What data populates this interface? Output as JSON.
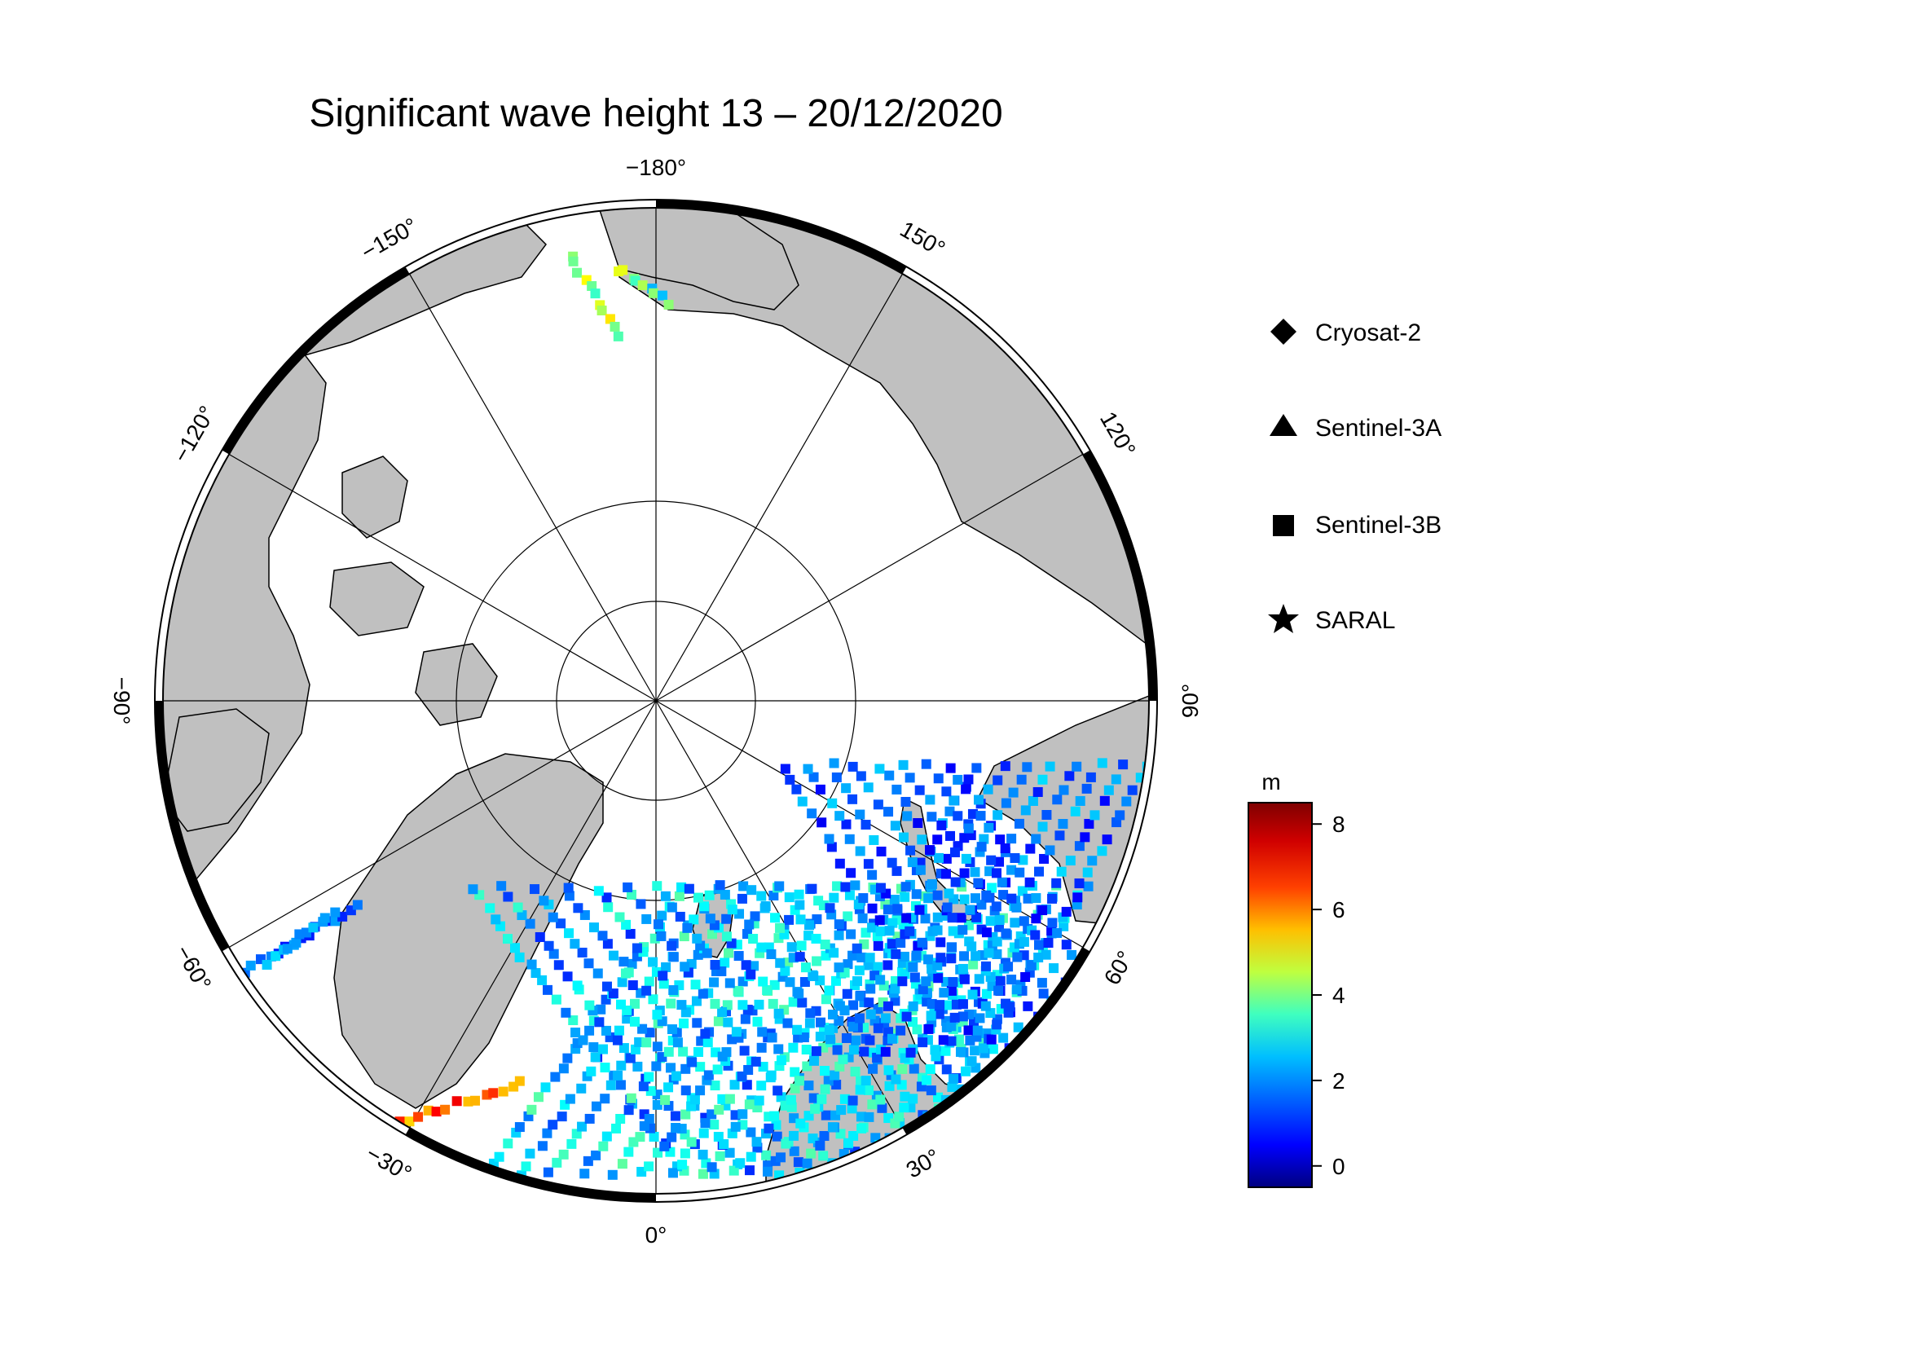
{
  "map": {
    "title": "Significant wave height 13 – 20/12/2020",
    "projection": "north-polar-stereographic",
    "longitude_labels": [
      {
        "key": "lon_m180",
        "text": "−180°",
        "lon": 180
      },
      {
        "key": "lon_150",
        "text": "150°",
        "lon": 150
      },
      {
        "key": "lon_120",
        "text": "120°",
        "lon": 120
      },
      {
        "key": "lon_90",
        "text": "90°",
        "lon": 90
      },
      {
        "key": "lon_60",
        "text": "60°",
        "lon": 60
      },
      {
        "key": "lon_30",
        "text": "30°",
        "lon": 30
      },
      {
        "key": "lon_0",
        "text": "0°",
        "lon": 0
      },
      {
        "key": "lon_m30",
        "text": "−30°",
        "lon": -30
      },
      {
        "key": "lon_m60",
        "text": "−60°",
        "lon": -60
      },
      {
        "key": "lon_m90",
        "text": "−90°",
        "lon": -90
      },
      {
        "key": "lon_m120",
        "text": "−120°",
        "lon": -120
      },
      {
        "key": "lon_m150",
        "text": "−150°",
        "lon": -150
      }
    ],
    "meridians_deg": [
      0,
      30,
      60,
      90,
      120,
      150,
      180,
      -30,
      -60,
      -90,
      -120,
      -150
    ],
    "colors": {
      "land": "#c0c0c0",
      "ice": "#ffffff",
      "grid": "#000000"
    }
  },
  "legend": {
    "items": [
      {
        "label": "Cryosat-2",
        "symbol": "diamond-icon"
      },
      {
        "label": "Sentinel-3A",
        "symbol": "triangle-icon"
      },
      {
        "label": "Sentinel-3B",
        "symbol": "square-icon"
      },
      {
        "label": "SARAL",
        "symbol": "star-icon"
      }
    ]
  },
  "colorbar": {
    "unit": "m",
    "min": -0.5,
    "max": 8.5,
    "ticks": [
      {
        "value": 0,
        "label": "0"
      },
      {
        "value": 2,
        "label": "2"
      },
      {
        "value": 4,
        "label": "4"
      },
      {
        "value": 6,
        "label": "6"
      },
      {
        "value": 8,
        "label": "8"
      }
    ],
    "colormap": "jet",
    "stops": [
      "#00007f",
      "#0000ff",
      "#007fff",
      "#00ffff",
      "#7fff7f",
      "#ffff00",
      "#ff7f00",
      "#ff0000",
      "#7f0000"
    ]
  }
}
